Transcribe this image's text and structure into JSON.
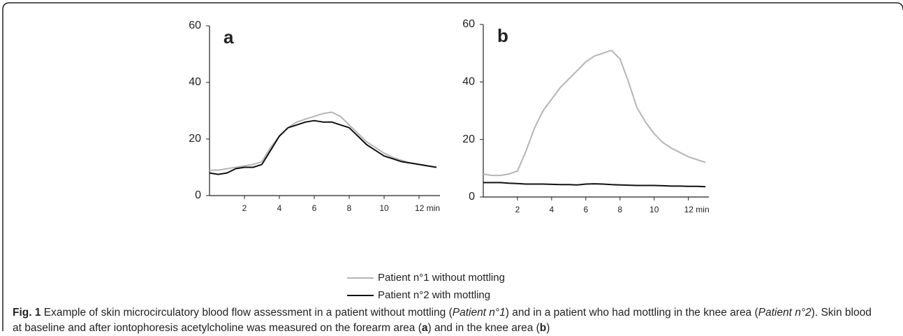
{
  "chart_data": [
    {
      "type": "line",
      "panel_label": "a",
      "x": [
        0,
        0.5,
        1,
        1.5,
        2,
        2.5,
        3,
        3.5,
        4,
        4.5,
        5,
        5.5,
        6,
        6.5,
        7,
        7.5,
        8,
        8.5,
        9,
        9.5,
        10,
        10.5,
        11,
        11.5,
        12,
        12.5,
        13
      ],
      "series": [
        {
          "name": "Patient n°1 without mottling",
          "color": "#b5b5b5",
          "values": [
            9,
            9,
            9.5,
            10,
            10.5,
            11,
            12,
            17,
            21,
            24,
            26,
            27,
            28,
            29,
            29.5,
            28,
            25,
            22,
            19,
            17,
            15,
            13.5,
            12.5,
            11.5,
            11,
            10.5,
            10
          ]
        },
        {
          "name": "Patient n°2 with mottling",
          "color": "#111111",
          "values": [
            8,
            7.5,
            8,
            9.5,
            10,
            10,
            11,
            16,
            21,
            24,
            25,
            26,
            26.5,
            26,
            26,
            25,
            24,
            21,
            18,
            16,
            14,
            13,
            12,
            11.5,
            11,
            10.5,
            10
          ]
        }
      ],
      "xlim": [
        0,
        13.2
      ],
      "xticks": [
        2,
        4,
        6,
        8,
        10,
        {
          "value": 12,
          "label": "12 min"
        }
      ],
      "ylim": [
        0,
        60
      ],
      "yticks": [
        0,
        20,
        40,
        60
      ]
    },
    {
      "type": "line",
      "panel_label": "b",
      "x": [
        0,
        0.5,
        1,
        1.5,
        2,
        2.5,
        3,
        3.5,
        4,
        4.5,
        5,
        5.5,
        6,
        6.5,
        7,
        7.5,
        8,
        8.5,
        9,
        9.5,
        10,
        10.5,
        11,
        11.5,
        12,
        12.5,
        13
      ],
      "series": [
        {
          "color": "#b5b5b5",
          "values": [
            8,
            7.5,
            7.5,
            8,
            9,
            16,
            24,
            30,
            34,
            38,
            41,
            44,
            47,
            49,
            50,
            51,
            48,
            40,
            31,
            26,
            22,
            19,
            17,
            15.5,
            14,
            13,
            12
          ]
        },
        {
          "color": "#111111",
          "values": [
            5,
            5,
            5,
            4.8,
            4.7,
            4.5,
            4.5,
            4.5,
            4.4,
            4.3,
            4.3,
            4.2,
            4.5,
            4.6,
            4.5,
            4.3,
            4.2,
            4.1,
            4,
            4,
            4,
            3.9,
            3.8,
            3.8,
            3.7,
            3.7,
            3.6
          ]
        }
      ],
      "xlim": [
        0,
        13.2
      ],
      "xticks": [
        2,
        4,
        6,
        8,
        10,
        {
          "value": 12,
          "label": "12 min"
        }
      ],
      "ylim": [
        0,
        60
      ],
      "yticks": [
        0,
        20,
        40,
        60
      ]
    }
  ],
  "caption": [
    "Fig. 1",
    " Example of skin microcirculatory blood flow assessment in a patient without mottling (",
    "Patient n°1",
    ") and in a patient who had mottling in the knee area (",
    "Patient n°2",
    "). Skin blood at baseline and after iontophoresis acetylcholine was measured on the forearm area (",
    "a",
    ") and in the knee area (",
    "b",
    ")"
  ]
}
